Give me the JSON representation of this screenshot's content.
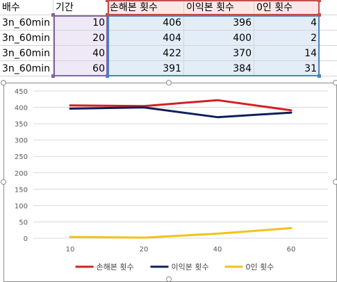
{
  "sheet": {
    "columns": [
      "배수",
      "기간",
      "손해본 횟수",
      "이익본 횟수",
      "0인 횟수"
    ],
    "rows": [
      [
        "3n_60min",
        "10",
        "406",
        "396",
        "4"
      ],
      [
        "3n_60min",
        "20",
        "404",
        "400",
        "2"
      ],
      [
        "3n_60min",
        "40",
        "422",
        "370",
        "14"
      ],
      [
        "3n_60min",
        "60",
        "391",
        "384",
        "31"
      ]
    ]
  },
  "colors": {
    "red_range": "#c0504d",
    "purple_range": "#8064a2",
    "blue_range": "#4f81bd"
  },
  "chart_data": {
    "type": "line",
    "categories": [
      "10",
      "20",
      "40",
      "60"
    ],
    "series": [
      {
        "name": "손해본 횟수",
        "color": "#d42020",
        "values": [
          406,
          404,
          422,
          391
        ]
      },
      {
        "name": "이익본 횟수",
        "color": "#0f1f5a",
        "values": [
          396,
          400,
          370,
          384
        ]
      },
      {
        "name": "0인 횟수",
        "color": "#f2c21b",
        "values": [
          4,
          2,
          14,
          31
        ]
      }
    ],
    "ylim": [
      0,
      450
    ],
    "yticks": [
      "0",
      "50",
      "100",
      "150",
      "200",
      "250",
      "300",
      "350",
      "400",
      "450"
    ],
    "grid": true,
    "legend": "bottom"
  }
}
